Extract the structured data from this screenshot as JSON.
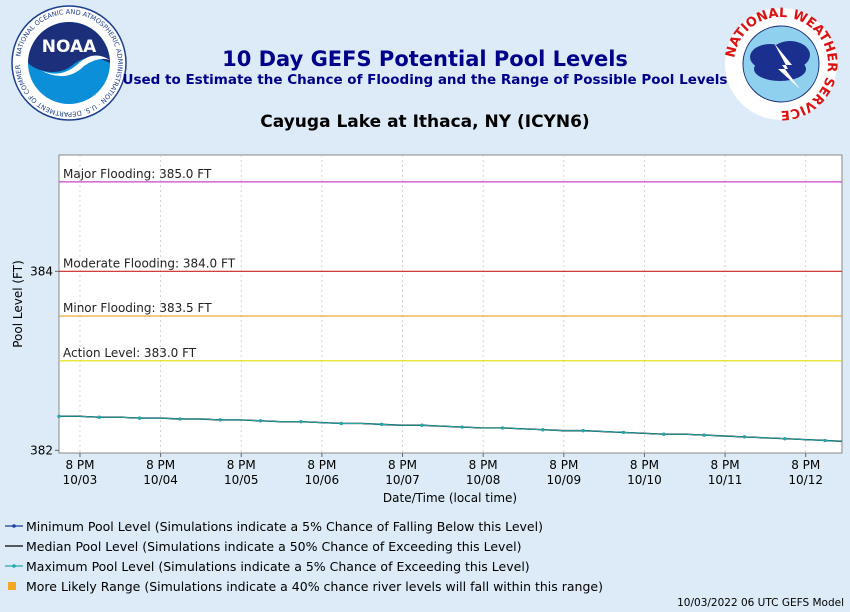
{
  "header": {
    "title": "10 Day GEFS Potential Pool Levels",
    "subtitle": "Used to Estimate the Chance of Flooding and the Range of Possible Pool Levels",
    "location": "Cayuga Lake at Ithaca, NY (ICYN6)",
    "noaa_logo_text": "NOAA",
    "noaa_ring_text": "NATIONAL OCEANIC AND ATMOSPHERIC ADMINISTRATION · U.S. DEPARTMENT OF COMMERCE",
    "nws_ring_text": "NATIONAL WEATHER SERVICE"
  },
  "chart_data": {
    "type": "line",
    "xlabel": "Date/Time (local time)",
    "ylabel": "Pool Level (FT)",
    "ylim": [
      381.97,
      385.3
    ],
    "xlim_days": [
      0,
      9.71
    ],
    "yticks": [
      382,
      384
    ],
    "xticks": [
      {
        "day": 0.26,
        "line1": "8 PM",
        "line2": "10/03"
      },
      {
        "day": 1.26,
        "line1": "8 PM",
        "line2": "10/04"
      },
      {
        "day": 2.26,
        "line1": "8 PM",
        "line2": "10/05"
      },
      {
        "day": 3.26,
        "line1": "8 PM",
        "line2": "10/06"
      },
      {
        "day": 4.26,
        "line1": "8 PM",
        "line2": "10/07"
      },
      {
        "day": 5.26,
        "line1": "8 PM",
        "line2": "10/08"
      },
      {
        "day": 6.26,
        "line1": "8 PM",
        "line2": "10/09"
      },
      {
        "day": 7.26,
        "line1": "8 PM",
        "line2": "10/10"
      },
      {
        "day": 8.26,
        "line1": "8 PM",
        "line2": "10/11"
      },
      {
        "day": 9.26,
        "line1": "8 PM",
        "line2": "10/12"
      }
    ],
    "thresholds": [
      {
        "label": "Major Flooding: 385.0 FT",
        "value": 385.0,
        "color": "#cc44cc"
      },
      {
        "label": "Moderate Flooding: 384.0 FT",
        "value": 384.0,
        "color": "#cc2222"
      },
      {
        "label": "Minor Flooding: 383.5 FT",
        "value": 383.5,
        "color": "#e8a020"
      },
      {
        "label": "Action Level: 383.0 FT",
        "value": 383.0,
        "color": "#dddd00"
      }
    ],
    "x_days": [
      0,
      0.25,
      0.5,
      0.75,
      1.0,
      1.25,
      1.5,
      1.75,
      2.0,
      2.25,
      2.5,
      2.75,
      3.0,
      3.25,
      3.5,
      3.75,
      4.0,
      4.25,
      4.5,
      4.75,
      5.0,
      5.25,
      5.5,
      5.75,
      6.0,
      6.25,
      6.5,
      6.75,
      7.0,
      7.25,
      7.5,
      7.75,
      8.0,
      8.25,
      8.5,
      8.75,
      9.0,
      9.25,
      9.5,
      9.71
    ],
    "series": [
      {
        "name": "Minimum Pool Level",
        "color": "#1a3f9e",
        "values": [
          382.38,
          382.38,
          382.37,
          382.37,
          382.36,
          382.36,
          382.35,
          382.35,
          382.34,
          382.34,
          382.33,
          382.32,
          382.32,
          382.31,
          382.3,
          382.3,
          382.29,
          382.28,
          382.28,
          382.27,
          382.26,
          382.25,
          382.25,
          382.24,
          382.23,
          382.22,
          382.22,
          382.21,
          382.2,
          382.19,
          382.18,
          382.18,
          382.17,
          382.16,
          382.15,
          382.14,
          382.13,
          382.12,
          382.11,
          382.1
        ]
      },
      {
        "name": "Median Pool Level",
        "color": "#000000",
        "values": [
          382.38,
          382.38,
          382.37,
          382.37,
          382.36,
          382.36,
          382.35,
          382.35,
          382.34,
          382.34,
          382.33,
          382.32,
          382.32,
          382.31,
          382.3,
          382.3,
          382.29,
          382.28,
          382.28,
          382.27,
          382.26,
          382.25,
          382.25,
          382.24,
          382.23,
          382.22,
          382.22,
          382.21,
          382.2,
          382.19,
          382.18,
          382.18,
          382.17,
          382.16,
          382.15,
          382.14,
          382.13,
          382.12,
          382.11,
          382.1
        ]
      },
      {
        "name": "Maximum Pool Level",
        "color": "#22aaaa",
        "values": [
          382.38,
          382.38,
          382.37,
          382.37,
          382.36,
          382.36,
          382.35,
          382.35,
          382.34,
          382.34,
          382.33,
          382.32,
          382.32,
          382.31,
          382.3,
          382.3,
          382.29,
          382.28,
          382.28,
          382.27,
          382.26,
          382.25,
          382.25,
          382.24,
          382.23,
          382.22,
          382.22,
          382.21,
          382.2,
          382.19,
          382.18,
          382.18,
          382.17,
          382.16,
          382.15,
          382.14,
          382.13,
          382.12,
          382.11,
          382.1
        ]
      }
    ],
    "grid": true
  },
  "legend": {
    "items": [
      {
        "label": "Minimum Pool Level (Simulations indicate a 5% Chance of Falling Below this Level)",
        "color": "#1a3f9e",
        "kind": "line-marker"
      },
      {
        "label": "Median Pool Level (Simulations indicate a 50% Chance of Exceeding this Level)",
        "color": "#000000",
        "kind": "line"
      },
      {
        "label": "Maximum Pool Level (Simulations indicate a 5% Chance of Exceeding this Level)",
        "color": "#22aaaa",
        "kind": "line-marker"
      },
      {
        "label": "More Likely Range (Simulations indicate a 40% chance river levels will fall within this range)",
        "color": "#f5a623",
        "kind": "square"
      }
    ]
  },
  "footer": {
    "model_run": "10/03/2022 06 UTC GEFS Model"
  }
}
